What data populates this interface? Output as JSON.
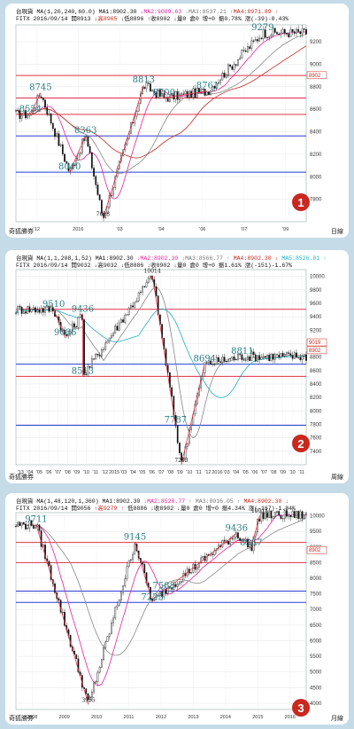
{
  "panels": [
    {
      "id": "p1",
      "badge": "1",
      "header_line1": [
        {
          "text": "台現貨 MA(1,20,240,60.0) MA1:8902.30",
          "color": "#111111"
        },
        {
          "text": " ↓MA2:9089.63",
          "color": "#e0249a"
        },
        {
          "text": " ↓MA3:8537.21",
          "color": "#777777"
        },
        {
          "text": " ↑MA4:8971.89 ↑",
          "color": "#c8281e"
        }
      ],
      "header_line2": [
        {
          "text": "FITX 2016/09/14 開8913 ↓",
          "color": "#111111"
        },
        {
          "text": "高8965",
          "color": "#c8281e"
        },
        {
          "text": " ↓低8896 ↑收8902 ↓量0 倉0 增+0 振0.78% 漲(-39)-0.43%",
          "color": "#111111"
        }
      ],
      "footer_left": "奇狐勝券",
      "footer_right": "日線",
      "price_markers": [
        "8902"
      ],
      "chart_data": {
        "type": "candlestick",
        "x_ticks": [
          "'12",
          "2016",
          "'03",
          "'04",
          "'06",
          "'07",
          "'09"
        ],
        "y_ticks": [
          7800,
          8000,
          8200,
          8400,
          8600,
          8800,
          9000,
          9200
        ],
        "ylim": [
          7600,
          9350
        ],
        "annotations": [
          {
            "label": "8745",
            "x": 0.085,
            "y": 8745
          },
          {
            "label": "8554",
            "x": 0.05,
            "y": 8554
          },
          {
            "label": "8363",
            "x": 0.24,
            "y": 8363
          },
          {
            "label": "8040",
            "x": 0.185,
            "y": 8040
          },
          {
            "label": "7628",
            "x": 0.3,
            "y": 7628
          },
          {
            "label": "8813",
            "x": 0.44,
            "y": 8813
          },
          {
            "label": "8700",
            "x": 0.51,
            "y": 8700
          },
          {
            "label": "8761",
            "x": 0.66,
            "y": 8761
          },
          {
            "label": "9279",
            "x": 0.85,
            "y": 9279
          }
        ],
        "hlines": [
          {
            "value": 8900,
            "color": "#e0304a"
          },
          {
            "value": 8700,
            "color": "#e0304a"
          },
          {
            "value": 8554,
            "color": "#e0304a"
          },
          {
            "value": 8363,
            "color": "#2a3fd6"
          },
          {
            "value": 8040,
            "color": "#2a3fd6"
          }
        ],
        "ma_lines": [
          "MA2",
          "MA3",
          "MA4"
        ]
      }
    },
    {
      "id": "p2",
      "badge": "2",
      "header_line1": [
        {
          "text": "台現貨 MA(1,1,208,1,52) MA1:8902.30",
          "color": "#111111"
        },
        {
          "text": " ↓MA2:8902.30",
          "color": "#e0249a"
        },
        {
          "text": " ↓MA3:8566.77 ↑",
          "color": "#777777"
        },
        {
          "text": " MA4:8902.30 ↓",
          "color": "#c8281e"
        },
        {
          "text": " MA5:8526.01 ↑",
          "color": "#1fb0c0"
        }
      ],
      "header_line2": [
        {
          "text": "FITX 2016/09/14 開9032 ↓高9032 ↓低8886 ↓收8902 ↓量0 倉0 增+0 振1.61% 漲(-151)-1.67%",
          "color": "#111111"
        }
      ],
      "footer_left": "奇狐勝券",
      "footer_right": "周線",
      "price_markers": [
        "9019",
        "8902"
      ],
      "chart_data": {
        "type": "candlestick",
        "x_ticks": [
          "'13",
          "'04",
          "'05",
          "'06",
          "'07",
          "'08",
          "'09",
          "'10",
          "'11",
          "'12",
          "2015",
          "'03",
          "'04",
          "'05",
          "'06",
          "'07",
          "'08",
          "'09",
          "'10",
          "'11",
          "'12",
          "2016",
          "'03",
          "'04",
          "'05",
          "'06",
          "'07",
          "'08",
          "'09",
          "'10",
          "'11"
        ],
        "y_ticks": [
          7400,
          7600,
          7800,
          8000,
          8200,
          8400,
          8600,
          8800,
          9000,
          9200,
          9400,
          9600,
          9800,
          10000
        ],
        "ylim": [
          7200,
          10100
        ],
        "annotations": [
          {
            "label": "9510",
            "x": 0.13,
            "y": 9510
          },
          {
            "label": "9436",
            "x": 0.23,
            "y": 9436
          },
          {
            "label": "9086",
            "x": 0.17,
            "y": 9086
          },
          {
            "label": "8513",
            "x": 0.23,
            "y": 8513
          },
          {
            "label": "10014",
            "x": 0.47,
            "y": 10014
          },
          {
            "label": "8694",
            "x": 0.65,
            "y": 8694
          },
          {
            "label": "8811",
            "x": 0.78,
            "y": 8811
          },
          {
            "label": "7787",
            "x": 0.55,
            "y": 7787
          },
          {
            "label": "7203",
            "x": 0.57,
            "y": 7203
          }
        ],
        "hlines": [
          {
            "value": 9510,
            "color": "#e0304a"
          },
          {
            "value": 8513,
            "color": "#e0304a"
          },
          {
            "value": 8694,
            "color": "#2a3fd6"
          },
          {
            "value": 7787,
            "color": "#2a3fd6"
          }
        ],
        "ma_lines": [
          "MA3",
          "MA5"
        ]
      }
    },
    {
      "id": "p3",
      "badge": "3",
      "header_line1": [
        {
          "text": "台現貨 MA(1,48,120,1,360) MA1:8902.30",
          "color": "#111111"
        },
        {
          "text": " ↓MA2:8528.77 ↑",
          "color": "#e0249a"
        },
        {
          "text": " MA3:8016.05 ↑",
          "color": "#777777"
        },
        {
          "text": " MA4:8902.30 ↓",
          "color": "#c8281e"
        }
      ],
      "header_line2": [
        {
          "text": "FITX 2016/09/14 開9056 ↑",
          "color": "#111111"
        },
        {
          "text": "高9279 ↑",
          "color": "#c8281e"
        },
        {
          "text": " 低8886 ↓收8902 ↓量0 倉0 增+0 振4.34% 漲(-167)-1.84%",
          "color": "#111111"
        }
      ],
      "footer_left": "奇狐勝券",
      "footer_right": "月線",
      "price_markers": [
        "8902"
      ],
      "chart_data": {
        "type": "candlestick",
        "x_ticks": [
          "2008",
          "2009",
          "2010",
          "2011",
          "2012",
          "2013",
          "2014",
          "2015",
          "2016"
        ],
        "y_ticks": [
          4000,
          4500,
          5000,
          5500,
          6000,
          6500,
          7000,
          7500,
          8000,
          8500,
          9000,
          9500,
          10000
        ],
        "ylim": [
          3800,
          10100
        ],
        "annotations": [
          {
            "label": "9711",
            "x": 0.07,
            "y": 9711
          },
          {
            "label": "9145",
            "x": 0.41,
            "y": 9145
          },
          {
            "label": "7588",
            "x": 0.51,
            "y": 7588
          },
          {
            "label": "7225",
            "x": 0.47,
            "y": 7225
          },
          {
            "label": "9436",
            "x": 0.76,
            "y": 9436
          },
          {
            "label": "8967",
            "x": 0.81,
            "y": 8967
          },
          {
            "label": "10014",
            "x": 0.84,
            "y": 10014
          },
          {
            "label": "3955",
            "x": 0.25,
            "y": 3955
          }
        ],
        "hlines": [
          {
            "value": 9145,
            "color": "#e0304a"
          },
          {
            "value": 8500,
            "color": "#e0304a"
          },
          {
            "value": 7588,
            "color": "#2a3fd6"
          },
          {
            "value": 7225,
            "color": "#2a3fd6"
          }
        ],
        "ma_lines": [
          "MA2",
          "MA3"
        ]
      }
    }
  ]
}
